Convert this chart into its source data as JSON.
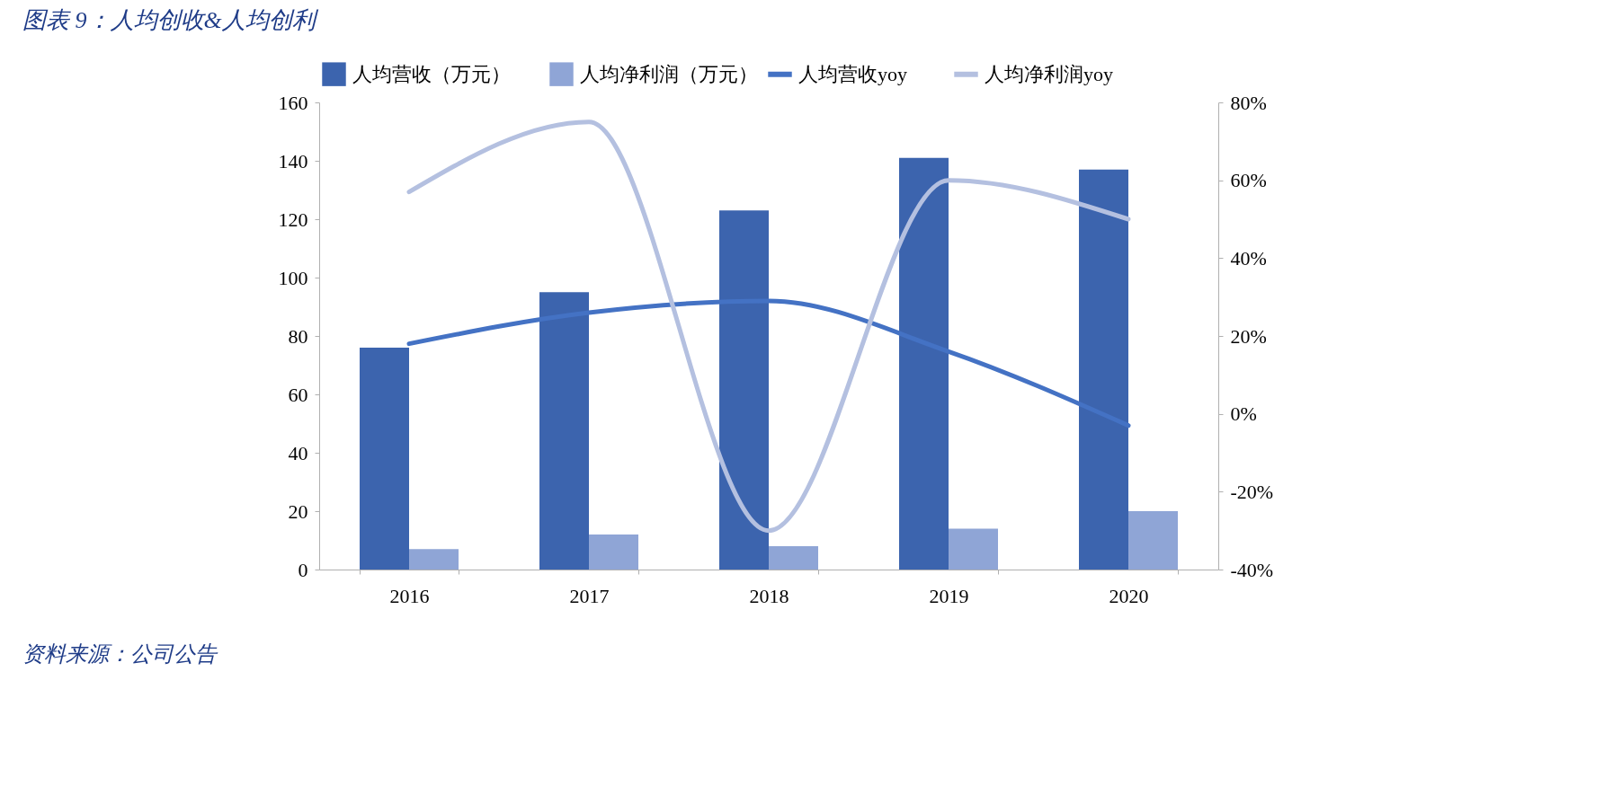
{
  "chart_data": {
    "type": "bar",
    "title": "图表 9：人均创收&人均创利",
    "annotations": [
      "资料来源：公司公告"
    ],
    "categories": [
      "2016",
      "2017",
      "2018",
      "2019",
      "2020"
    ],
    "series": [
      {
        "name": "人均营收（万元）",
        "color": "#3c64ae",
        "values": [
          76,
          95,
          123,
          141,
          137
        ]
      },
      {
        "name": "人均净利润（万元）",
        "color": "#8fa5d6",
        "values": [
          7,
          12,
          8,
          14,
          20
        ]
      },
      {
        "name": "人均营收yoy",
        "type": "line",
        "axis": "y2",
        "color": "#4472c4",
        "values": [
          18,
          26,
          29,
          16,
          -3
        ]
      },
      {
        "name": "人均净利润yoy",
        "type": "line",
        "axis": "y2",
        "color": "#b4c0e0",
        "values": [
          57,
          75,
          -30,
          60,
          50
        ]
      }
    ],
    "ylim": [
      0,
      160
    ],
    "yticks": [
      0,
      20,
      40,
      60,
      80,
      100,
      120,
      140,
      160
    ],
    "y2lim": [
      -40,
      80
    ],
    "y2ticks": [
      {
        "value": -40,
        "label": "-40%"
      },
      {
        "value": -20,
        "label": "-20%"
      },
      {
        "value": 0,
        "label": "0%"
      },
      {
        "value": 20,
        "label": "20%"
      },
      {
        "value": 40,
        "label": "40%"
      },
      {
        "value": 60,
        "label": "60%"
      },
      {
        "value": 80,
        "label": "80%"
      }
    ],
    "grid": false,
    "legend": "top"
  }
}
